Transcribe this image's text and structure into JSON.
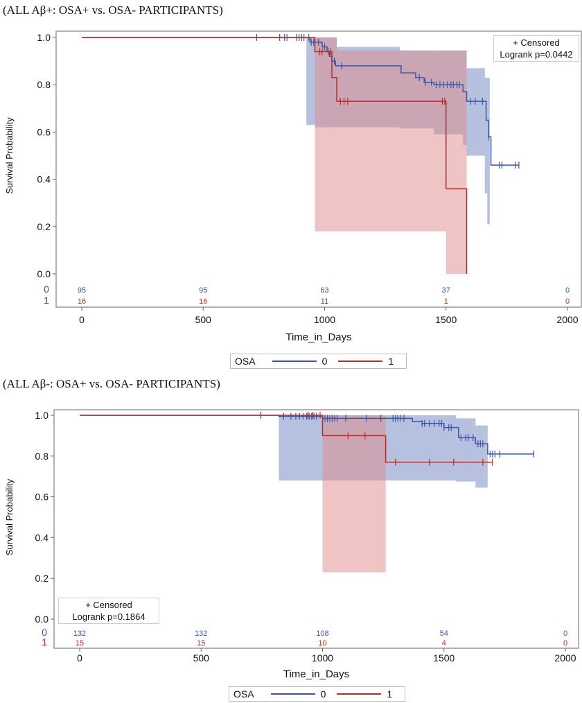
{
  "chart_data": [
    {
      "type": "line",
      "title": "(ALL Aβ+: OSA+ vs. OSA- PARTICIPANTS)",
      "xlabel": "Time_in_Days",
      "ylabel": "Survival Probability",
      "xlim": [
        0,
        2000
      ],
      "ylim": [
        0,
        1
      ],
      "xticks": [
        "0",
        "500",
        "1000",
        "1500",
        "2000"
      ],
      "yticks": [
        "0.0",
        "0.2",
        "0.4",
        "0.6",
        "0.8",
        "1.0"
      ],
      "legend_title": "OSA",
      "legend_placement": "bottom",
      "censored_label": "+ Censored",
      "logrank_label": "Logrank p=0.0442",
      "at_risk_times": [
        0,
        500,
        1000,
        1500,
        2000
      ],
      "series": [
        {
          "name": "0",
          "color": "#3a55a6",
          "band_color": "#6e82c0",
          "steps": [
            [
              0,
              1.0
            ],
            [
              940,
              0.98
            ],
            [
              990,
              0.96
            ],
            [
              1010,
              0.94
            ],
            [
              1020,
              0.92
            ],
            [
              1030,
              0.9
            ],
            [
              1045,
              0.88
            ],
            [
              1315,
              0.85
            ],
            [
              1375,
              0.83
            ],
            [
              1410,
              0.81
            ],
            [
              1450,
              0.8
            ],
            [
              1570,
              0.77
            ],
            [
              1585,
              0.73
            ],
            [
              1665,
              0.65
            ],
            [
              1675,
              0.58
            ],
            [
              1685,
              0.46
            ]
          ],
          "end": 1800,
          "censored": [
            720,
            815,
            835,
            845,
            885,
            895,
            905,
            915,
            935,
            945,
            955,
            975,
            1000,
            1015,
            1040,
            1070,
            1390,
            1415,
            1440,
            1460,
            1475,
            1490,
            1505,
            1520,
            1530,
            1545,
            1555,
            1600,
            1620,
            1650,
            1675,
            1720,
            1730,
            1785,
            1800
          ],
          "bands": [
            [
              925,
              960,
              0.63,
              1.0
            ],
            [
              960,
              1050,
              0.62,
              1.0
            ],
            [
              1050,
              1310,
              0.62,
              0.96
            ],
            [
              1310,
              1450,
              0.615,
              0.945
            ],
            [
              1450,
              1570,
              0.59,
              0.945
            ],
            [
              1570,
              1585,
              0.545,
              0.945
            ],
            [
              1585,
              1660,
              0.5,
              0.87
            ],
            [
              1660,
              1670,
              0.34,
              0.83
            ],
            [
              1670,
              1680,
              0.21,
              0.83
            ]
          ],
          "at_risk": [
            "95",
            "95",
            "63",
            "37",
            "0"
          ]
        },
        {
          "name": "1",
          "color": "#b02f28",
          "band_color": "#dd8a8a",
          "steps": [
            [
              0,
              1.0
            ],
            [
              960,
              0.94
            ],
            [
              1030,
              0.83
            ],
            [
              1050,
              0.73
            ],
            [
              1500,
              0.36
            ],
            [
              1585,
              0.0
            ]
          ],
          "end": 1585,
          "censored": [
            980,
            990,
            1025,
            1065,
            1080,
            1095,
            1485,
            1495
          ],
          "bands": [
            [
              960,
              1050,
              0.18,
              1.0
            ],
            [
              1050,
              1500,
              0.18,
              0.945
            ],
            [
              1500,
              1585,
              0.0,
              0.945
            ]
          ],
          "at_risk": [
            "16",
            "16",
            "11",
            "1",
            "0"
          ]
        }
      ]
    },
    {
      "type": "line",
      "title": "(ALL Aβ-: OSA+ vs. OSA- PARTICIPANTS)",
      "xlabel": "Time_in_Days",
      "ylabel": "Survival Probability",
      "xlim": [
        0,
        2000
      ],
      "ylim": [
        0,
        1
      ],
      "xticks": [
        "0",
        "500",
        "1000",
        "1500",
        "2000"
      ],
      "yticks": [
        "0.0",
        "0.2",
        "0.4",
        "0.6",
        "0.8",
        "1.0"
      ],
      "legend_title": "OSA",
      "legend_placement": "bottom",
      "censored_label": "+ Censored",
      "logrank_label": "Logrank p=0.1864",
      "at_risk_times": [
        0,
        500,
        1000,
        1500,
        2000
      ],
      "series": [
        {
          "name": "0",
          "color": "#3a55a6",
          "band_color": "#6e82c0",
          "steps": [
            [
              0,
              1.0
            ],
            [
              820,
              0.995
            ],
            [
              1000,
              0.985
            ],
            [
              1370,
              0.97
            ],
            [
              1410,
              0.96
            ],
            [
              1500,
              0.94
            ],
            [
              1560,
              0.89
            ],
            [
              1630,
              0.86
            ],
            [
              1680,
              0.81
            ]
          ],
          "end": 1870,
          "censored": [
            840,
            870,
            890,
            905,
            920,
            935,
            945,
            955,
            965,
            975,
            1010,
            1020,
            1030,
            1040,
            1050,
            1060,
            1095,
            1180,
            1240,
            1290,
            1300,
            1310,
            1320,
            1335,
            1410,
            1420,
            1440,
            1460,
            1480,
            1490,
            1500,
            1520,
            1530,
            1570,
            1590,
            1600,
            1620,
            1640,
            1650,
            1660,
            1690,
            1700,
            1710,
            1730,
            1870
          ],
          "bands": [
            [
              820,
              1550,
              0.68,
              1.0
            ],
            [
              1550,
              1630,
              0.675,
              0.985
            ],
            [
              1630,
              1680,
              0.645,
              0.95
            ]
          ],
          "at_risk": [
            "132",
            "132",
            "108",
            "54",
            "0"
          ]
        },
        {
          "name": "1",
          "color": "#b02f28",
          "band_color": "#dd8a8a",
          "steps": [
            [
              0,
              1.0
            ],
            [
              1000,
              0.9
            ],
            [
              1260,
              0.77
            ]
          ],
          "end": 1700,
          "censored": [
            745,
            940,
            960,
            990,
            1105,
            1175,
            1300,
            1440,
            1540,
            1660,
            1700
          ],
          "bands": [
            [
              1000,
              1260,
              0.23,
              1.0
            ]
          ],
          "at_risk": [
            "15",
            "15",
            "10",
            "4",
            "0"
          ]
        }
      ]
    }
  ]
}
